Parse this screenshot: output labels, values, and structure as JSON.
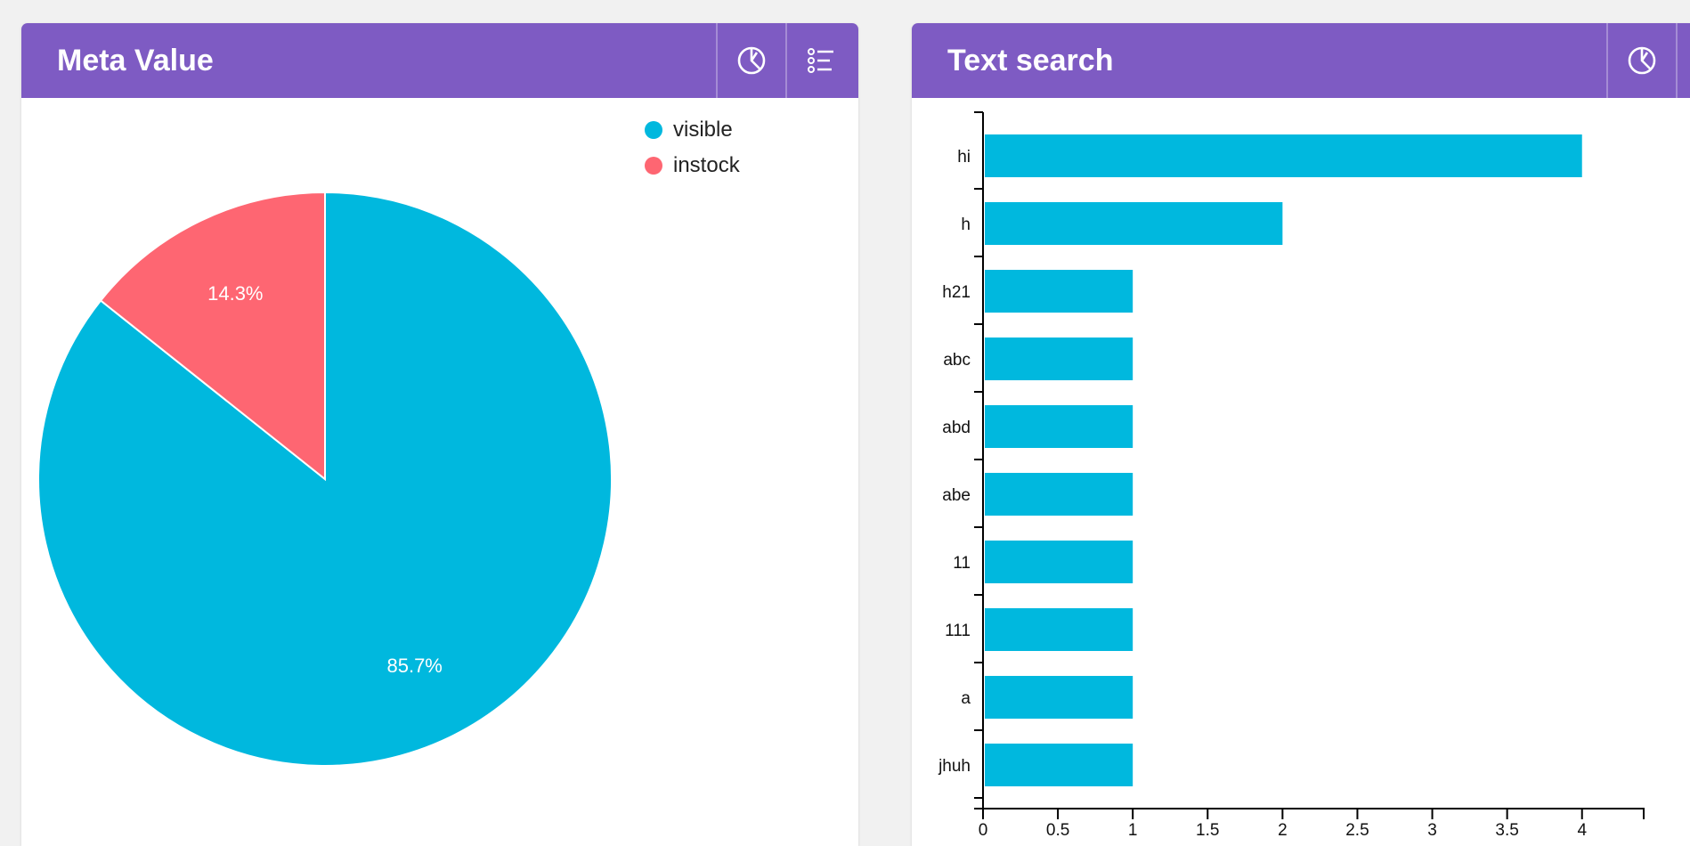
{
  "colors": {
    "header_bg": "#7e5bc3",
    "visible": "#00b8de",
    "instock": "#fe6672",
    "bar": "#00b8de"
  },
  "panels": {
    "meta": {
      "title": "Meta Value",
      "buttons": [
        {
          "icon": "pie-chart-icon"
        },
        {
          "icon": "list-icon"
        }
      ]
    },
    "text": {
      "title": "Text search",
      "buttons": [
        {
          "icon": "pie-chart-icon"
        }
      ]
    }
  },
  "chart_data": [
    {
      "type": "pie",
      "title": "Meta Value",
      "legend_position": "top-right",
      "slices": [
        {
          "label": "visible",
          "value": 85.7,
          "display": "85.7%",
          "color": "#00b8de"
        },
        {
          "label": "instock",
          "value": 14.3,
          "display": "14.3%",
          "color": "#fe6672"
        }
      ]
    },
    {
      "type": "bar",
      "orientation": "horizontal",
      "title": "Text search",
      "categories": [
        "hi",
        "h",
        "h21",
        "abc",
        "abd",
        "abe",
        "11",
        "111",
        "a",
        "jhuh"
      ],
      "values": [
        4,
        2,
        1,
        1,
        1,
        1,
        1,
        1,
        1,
        1
      ],
      "xlim": [
        0,
        4.4
      ],
      "xticks": [
        "0",
        "0.5",
        "1",
        "1.5",
        "2",
        "2.5",
        "3",
        "3.5",
        "4"
      ],
      "xtick_values": [
        0,
        0.5,
        1,
        1.5,
        2,
        2.5,
        3,
        3.5,
        4
      ],
      "grid": false
    }
  ]
}
